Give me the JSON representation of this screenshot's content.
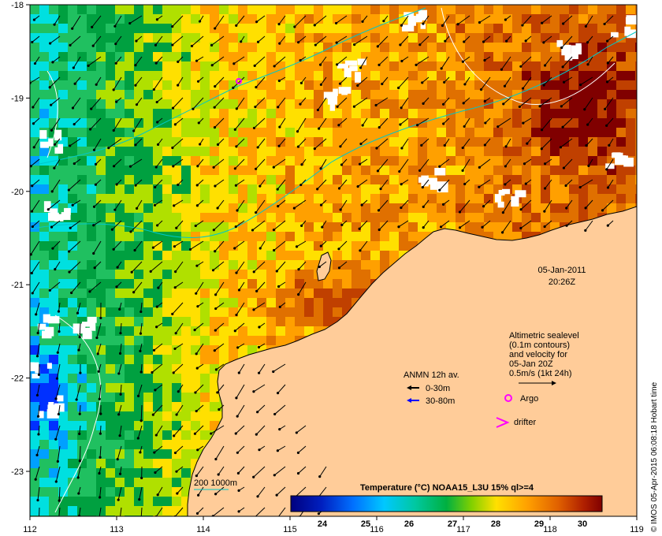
{
  "map": {
    "lon_ticks": [
      "112",
      "113",
      "114",
      "115",
      "116",
      "117",
      "118",
      "119"
    ],
    "lat_ticks": [
      "-18",
      "-19",
      "-20",
      "-21",
      "-22",
      "-23"
    ],
    "land_color": "#ffcc99",
    "ocean_palette": [
      "#00007f",
      "#0030ff",
      "#00a0ff",
      "#00e0e0",
      "#20c060",
      "#00a040",
      "#b0e000",
      "#ffe000",
      "#ffa000",
      "#e07000",
      "#c04000",
      "#800000"
    ]
  },
  "timestamp": {
    "date": "05-Jan-2011",
    "time": "20:26Z"
  },
  "altimetry_legend": {
    "line1": "Altimetric sealevel",
    "line2": "(0.1m contours)",
    "line3": "and velocity for",
    "line4": "05-Jan 20Z",
    "line5": "0.5m/s (1kt 24h)"
  },
  "anmn_legend": {
    "title": "ANMN 12h av.",
    "item1": "0-30m",
    "item2": "30-80m",
    "item1_color": "#000000",
    "item2_color": "#0000ff"
  },
  "markers": {
    "argo": "Argo",
    "drifter": "drifter",
    "marker_color": "#ff00ff"
  },
  "contour_legend": {
    "label": "200  1000m",
    "color": "#00c8c8"
  },
  "colorbar": {
    "title": "Temperature (°C) NOAA15_L3U 15% ql>=4",
    "labels": [
      "24",
      "25",
      "26",
      "27",
      "28",
      "29",
      "30"
    ]
  },
  "credit": "© IMOS 05-Apr-2015 06:08:18 Hobart time"
}
